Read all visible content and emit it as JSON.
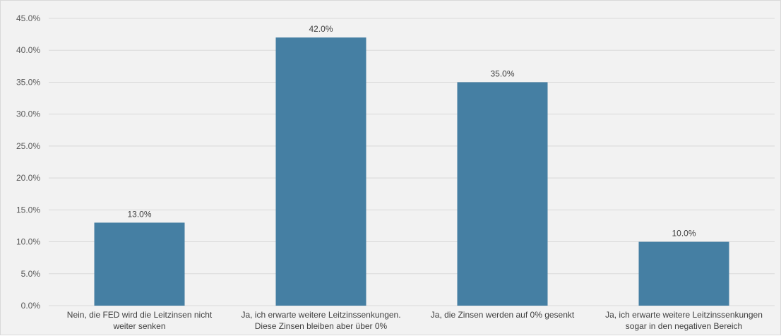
{
  "chart_data": {
    "type": "bar",
    "categories": [
      [
        "Nein, die FED wird die Leitzinsen nicht",
        "weiter senken"
      ],
      [
        "Ja, ich erwarte weitere Leitzinssenkungen.",
        "Diese Zinsen bleiben aber über 0%"
      ],
      [
        "Ja, die Zinsen werden auf 0% gesenkt"
      ],
      [
        "Ja, ich erwarte weitere Leitzinssenkungen",
        "sogar in den negativen Bereich"
      ]
    ],
    "values": [
      13.0,
      42.0,
      35.0,
      10.0
    ],
    "data_labels": [
      "13.0%",
      "42.0%",
      "35.0%",
      "10.0%"
    ],
    "y_ticks": [
      "0.0%",
      "5.0%",
      "10.0%",
      "15.0%",
      "20.0%",
      "25.0%",
      "30.0%",
      "35.0%",
      "40.0%",
      "45.0%"
    ],
    "ylim": [
      0,
      45
    ],
    "grid": true,
    "bar_color": "#457fa3",
    "gridline_color": "#d9d9d9",
    "background_color": "#f2f2f2"
  }
}
